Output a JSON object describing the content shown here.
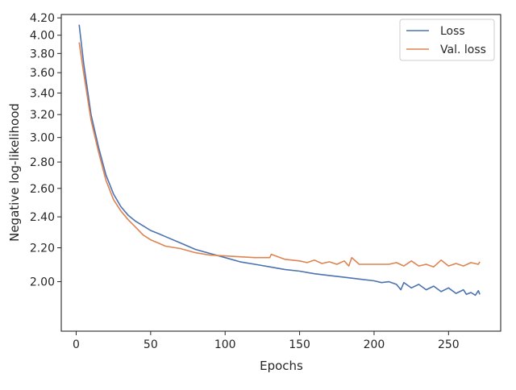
{
  "chart_data": {
    "type": "line",
    "title": "",
    "xlabel": "Epochs",
    "ylabel": "Negative log-likelihood",
    "xlim": [
      -10,
      285
    ],
    "ylim": [
      1.74,
      4.24
    ],
    "yscale": "log",
    "grid": false,
    "legend_position": "top-right",
    "x_ticks": [
      0,
      50,
      100,
      150,
      200,
      250
    ],
    "x_tick_labels": [
      "0",
      "50",
      "100",
      "150",
      "200",
      "250"
    ],
    "y_ticks": [
      2.0,
      2.2,
      2.4,
      2.6,
      2.8,
      3.0,
      3.2,
      3.4,
      3.6,
      3.8,
      4.0,
      4.2
    ],
    "y_tick_labels": [
      "2.00",
      "2.20",
      "2.40",
      "2.60",
      "2.80",
      "3.00",
      "3.20",
      "3.40",
      "3.60",
      "3.80",
      "4.00",
      "4.20"
    ],
    "series": [
      {
        "name": "Loss",
        "color": "#4c72b0",
        "x": [
          2,
          5,
          10,
          15,
          20,
          25,
          30,
          35,
          40,
          45,
          50,
          55,
          60,
          70,
          80,
          90,
          100,
          110,
          120,
          130,
          140,
          150,
          160,
          170,
          180,
          190,
          200,
          205,
          210,
          215,
          218,
          220,
          225,
          230,
          235,
          240,
          245,
          250,
          255,
          260,
          262,
          265,
          268,
          270,
          271
        ],
        "y": [
          4.12,
          3.7,
          3.2,
          2.92,
          2.7,
          2.56,
          2.47,
          2.41,
          2.37,
          2.34,
          2.31,
          2.29,
          2.27,
          2.23,
          2.19,
          2.165,
          2.14,
          2.115,
          2.1,
          2.085,
          2.07,
          2.06,
          2.045,
          2.035,
          2.025,
          2.015,
          2.005,
          1.995,
          2.0,
          1.985,
          1.955,
          1.995,
          1.965,
          1.985,
          1.955,
          1.975,
          1.945,
          1.965,
          1.935,
          1.955,
          1.93,
          1.94,
          1.925,
          1.95,
          1.93
        ]
      },
      {
        "name": "Val. loss",
        "color": "#dd8452",
        "x": [
          2,
          5,
          10,
          15,
          20,
          25,
          30,
          35,
          40,
          45,
          50,
          55,
          60,
          70,
          80,
          90,
          100,
          110,
          120,
          130,
          131,
          140,
          150,
          155,
          160,
          165,
          170,
          175,
          180,
          183,
          185,
          190,
          200,
          210,
          215,
          220,
          225,
          230,
          235,
          240,
          245,
          250,
          255,
          260,
          265,
          270,
          271
        ],
        "y": [
          3.92,
          3.6,
          3.15,
          2.88,
          2.66,
          2.52,
          2.44,
          2.38,
          2.33,
          2.28,
          2.25,
          2.23,
          2.21,
          2.195,
          2.17,
          2.155,
          2.15,
          2.145,
          2.14,
          2.14,
          2.16,
          2.13,
          2.12,
          2.11,
          2.125,
          2.105,
          2.115,
          2.1,
          2.12,
          2.09,
          2.14,
          2.1,
          2.1,
          2.1,
          2.11,
          2.09,
          2.12,
          2.09,
          2.1,
          2.085,
          2.125,
          2.09,
          2.105,
          2.09,
          2.11,
          2.1,
          2.115
        ]
      }
    ]
  }
}
